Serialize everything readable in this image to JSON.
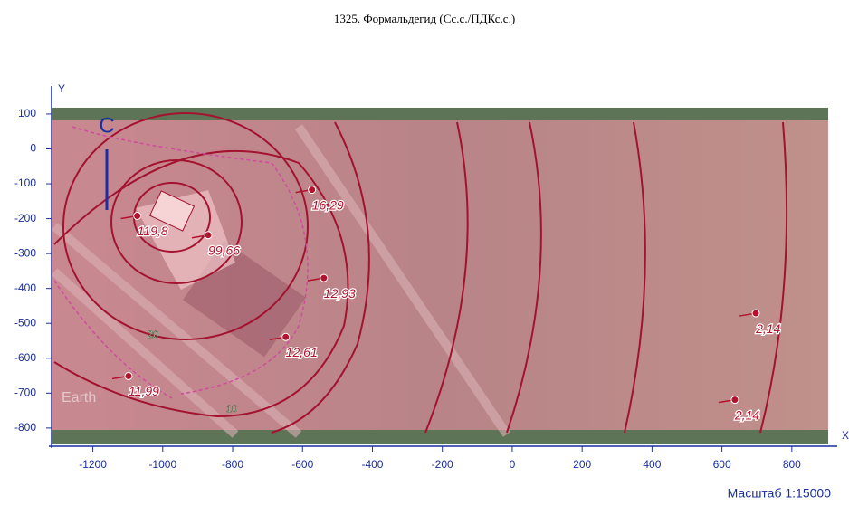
{
  "title": "1325. Формальдегид (Сс.с./ПДКс.с.)",
  "axes": {
    "x_label": "X",
    "y_label": "Y",
    "xlim": [
      -1318,
      904
    ],
    "ylim": [
      -847,
      118
    ],
    "xticks": [
      -1200,
      -1000,
      -800,
      -600,
      -400,
      -200,
      0,
      200,
      400,
      600,
      800
    ],
    "yticks": [
      100,
      0,
      -100,
      -200,
      -300,
      -400,
      -500,
      -600,
      -700,
      -800
    ]
  },
  "points": [
    {
      "x": -1073,
      "y": -192,
      "label": "119,8"
    },
    {
      "x": -870,
      "y": -247,
      "label": "99,66"
    },
    {
      "x": -573,
      "y": -117,
      "label": "16,29"
    },
    {
      "x": -539,
      "y": -370,
      "label": "12,93"
    },
    {
      "x": -648,
      "y": -539,
      "label": "12,61"
    },
    {
      "x": -1098,
      "y": -651,
      "label": "11,99"
    },
    {
      "x": 697,
      "y": -471,
      "label": "2,14"
    },
    {
      "x": 637,
      "y": -719,
      "label": "2,14"
    }
  ],
  "contour_labels": [
    "20",
    "10"
  ],
  "north": "С",
  "scale": "Масштаб 1:15000",
  "watermark": "Earth"
}
